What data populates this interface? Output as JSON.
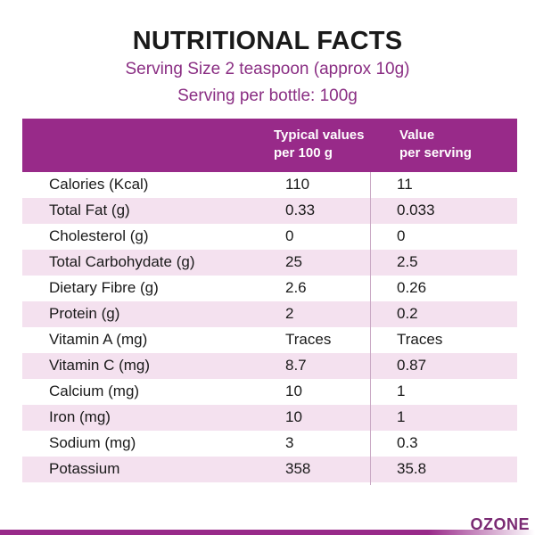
{
  "title": "NUTRITIONAL FACTS",
  "serving_size": "Serving Size 2 teaspoon (approx 10g)",
  "serving_per_bottle": "Serving per bottle: 100g",
  "table": {
    "header": {
      "col2_line1": "Typical values",
      "col2_line2": "per 100 g",
      "col3_line1": "Value",
      "col3_line2": "per serving"
    },
    "rows": [
      {
        "name": "Calories (Kcal)",
        "per100": "110",
        "per_serving": "11"
      },
      {
        "name": "Total Fat (g)",
        "per100": "0.33",
        "per_serving": "0.033"
      },
      {
        "name": "Cholesterol (g)",
        "per100": "0",
        "per_serving": "0"
      },
      {
        "name": "Total Carbohydate (g)",
        "per100": "25",
        "per_serving": "2.5"
      },
      {
        "name": "Dietary Fibre (g)",
        "per100": "2.6",
        "per_serving": "0.26"
      },
      {
        "name": "Protein (g)",
        "per100": "2",
        "per_serving": "0.2"
      },
      {
        "name": "Vitamin A (mg)",
        "per100": "Traces",
        "per_serving": "Traces"
      },
      {
        "name": "Vitamin C (mg)",
        "per100": "8.7",
        "per_serving": "0.87"
      },
      {
        "name": "Calcium (mg)",
        "per100": "10",
        "per_serving": "1"
      },
      {
        "name": "Iron (mg)",
        "per100": "10",
        "per_serving": "1"
      },
      {
        "name": "Sodium (mg)",
        "per100": "3",
        "per_serving": "0.3"
      },
      {
        "name": "Potassium",
        "per100": "358",
        "per_serving": "35.8"
      }
    ]
  },
  "brand": "OZONE",
  "colors": {
    "accent": "#982a89",
    "stripe": "#f4e1ef",
    "subtitle": "#8a2e83"
  }
}
